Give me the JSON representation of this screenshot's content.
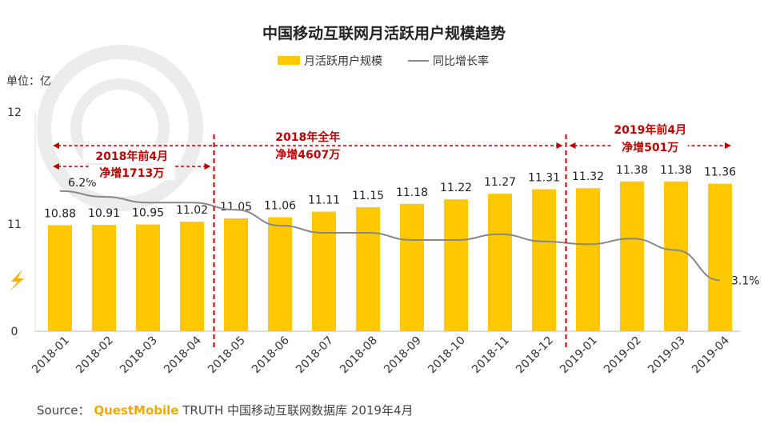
{
  "chart_data": {
    "type": "bar",
    "title": "中国移动互联网月活跃用户规模趋势",
    "unit_label": "单位：亿",
    "categories": [
      "2018-01",
      "2018-02",
      "2018-03",
      "2018-04",
      "2018-05",
      "2018-06",
      "2018-07",
      "2018-08",
      "2018-09",
      "2018-10",
      "2018-11",
      "2018-12",
      "2019-01",
      "2019-02",
      "2019-03",
      "2019-04"
    ],
    "series": [
      {
        "name": "月活跃用户规模",
        "kind": "bar",
        "color": "#FFC800",
        "values": [
          10.88,
          10.91,
          10.95,
          11.02,
          11.05,
          11.06,
          11.11,
          11.15,
          11.18,
          11.22,
          11.27,
          11.31,
          11.32,
          11.38,
          11.38,
          11.36
        ]
      },
      {
        "name": "同比增长率",
        "kind": "line",
        "color": "#888888",
        "values": [
          6.2,
          6.0,
          5.8,
          5.8,
          5.55,
          5.0,
          4.75,
          4.75,
          4.5,
          4.5,
          4.7,
          4.45,
          4.35,
          4.55,
          4.15,
          3.1
        ],
        "labels": [
          {
            "index": 0,
            "text": "6.2%"
          },
          {
            "index": 15,
            "text": "3.1%"
          }
        ]
      }
    ],
    "yaxis": {
      "ticks": [
        "12",
        "11",
        "0"
      ],
      "broken": true
    },
    "annotations": [
      {
        "id": "q1",
        "lines": [
          "2018年前4月",
          "净增1713万"
        ],
        "from": 0,
        "to": 3,
        "color": "#C00000"
      },
      {
        "id": "year",
        "lines": [
          "2018年全年",
          "净增4607万"
        ],
        "from": 0,
        "to": 11,
        "color": "#C00000"
      },
      {
        "id": "q1-2019",
        "lines": [
          "2019年前4月",
          "净增501万"
        ],
        "from": 12,
        "to": 15,
        "color": "#C00000"
      }
    ],
    "separators": [
      {
        "after_index": 3,
        "color": "#C00000"
      },
      {
        "after_index": 11,
        "color": "#C00000"
      }
    ],
    "legend": {
      "position": "top-center"
    }
  },
  "source": {
    "prefix": "Source：",
    "brand": "QuestMobile",
    "rest": " TRUTH 中国移动互联网数据库 2019年4月"
  },
  "colors": {
    "accent": "#FFC800",
    "annotation": "#C00000",
    "line": "#888888",
    "brand": "#F5A800"
  }
}
